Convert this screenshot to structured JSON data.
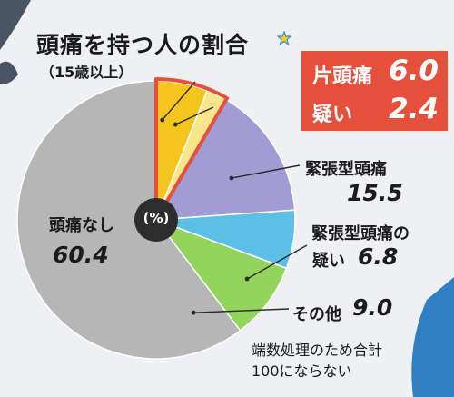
{
  "header": {
    "title": "頭痛を持つ人の割合",
    "subtitle": "（15歳以上）"
  },
  "center_label": "(%)",
  "footnote": {
    "line1": "端数処理のため合計",
    "line2": "100にならない"
  },
  "chart_data": {
    "type": "pie",
    "unit": "%",
    "start_angle_deg": 0,
    "direction": "clockwise",
    "slices": [
      {
        "label": "片頭痛",
        "value": 6.0,
        "color": "#f4c51e",
        "display": "6.0"
      },
      {
        "label": "疑い",
        "value": 2.4,
        "color": "#f7e68a",
        "display": "2.4"
      },
      {
        "label": "緊張型頭痛",
        "value": 15.5,
        "color": "#a39bd4",
        "display": "15.5"
      },
      {
        "label": "緊張型頭痛の疑い",
        "value": 6.8,
        "color": "#5cc0e6",
        "display": "6.8"
      },
      {
        "label": "その他",
        "value": 9.0,
        "color": "#93d45c",
        "display": "9.0"
      },
      {
        "label": "頭痛なし",
        "value": 60.4,
        "color": "#b6b6b6",
        "display": "60.4"
      }
    ],
    "highlight_group": [
      "片頭痛",
      "疑い"
    ],
    "highlight_color": "#e4503c"
  },
  "labels": {
    "tension_line1": "緊張型頭痛",
    "tension_line2": "",
    "tension_suspected_line1": "緊張型頭痛の",
    "tension_suspected_line2": "疑い",
    "other": "その他",
    "none": "頭痛なし"
  }
}
